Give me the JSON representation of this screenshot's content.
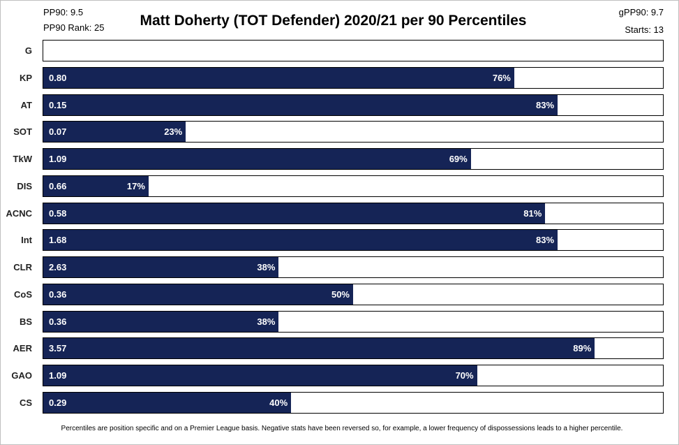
{
  "header": {
    "pp90": "PP90: 9.5",
    "pp90_rank": "PP90 Rank: 25",
    "gpp90": "gPP90: 9.7",
    "starts": "Starts: 13"
  },
  "footnote": "Percentiles are position specific and on a Premier League basis. Negative stats have been reversed so, for example, a lower frequency of dispossessions leads to a higher percentile.",
  "colors": {
    "bar": "#152456",
    "border": "#000000"
  },
  "chart_data": {
    "type": "bar",
    "orientation": "horizontal",
    "title": "Matt Doherty (TOT Defender) 2020/21 per 90 Percentiles",
    "xlim": [
      0,
      100
    ],
    "grid": false,
    "categories": [
      "G",
      "KP",
      "AT",
      "SOT",
      "TkW",
      "DIS",
      "ACNC",
      "Int",
      "CLR",
      "CoS",
      "BS",
      "AER",
      "GAO",
      "CS"
    ],
    "values": [
      null,
      "0.80",
      "0.15",
      "0.07",
      "1.09",
      "0.66",
      "0.58",
      "1.68",
      "2.63",
      "0.36",
      "0.36",
      "3.57",
      "1.09",
      "0.29"
    ],
    "percentiles": [
      null,
      76,
      83,
      23,
      69,
      17,
      81,
      83,
      38,
      50,
      38,
      89,
      70,
      40
    ]
  }
}
